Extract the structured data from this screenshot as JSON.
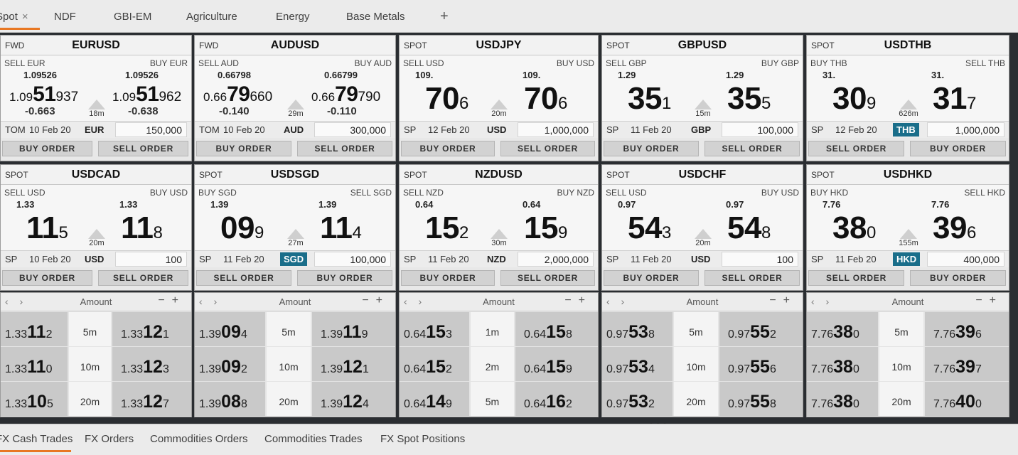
{
  "tabs": [
    {
      "label": "Spot",
      "close": "×"
    },
    {
      "label": "NDF"
    },
    {
      "label": "GBI-EM"
    },
    {
      "label": "Agriculture"
    },
    {
      "label": "Energy"
    },
    {
      "label": "Base Metals"
    },
    {
      "label": "+"
    }
  ],
  "colors": {
    "accent": "#e87722",
    "highlight_ccy": "#1a6e8a"
  },
  "tiles_row1": [
    {
      "mode": "FWD",
      "pair": "EURUSD",
      "l_lbl": "SELL EUR",
      "r_lbl": "BUY EUR",
      "l_small": "1.09526",
      "r_small": "1.09526",
      "l_pre": "1.09",
      "l_big": "51",
      "l_sup": "937",
      "r_pre": "1.09",
      "r_big": "51",
      "r_sup": "962",
      "l_chg": "-0.663",
      "r_chg": "-0.638",
      "spread": "18m",
      "tenor": "TOM",
      "date": "10 Feb 20",
      "ccy": "EUR",
      "ccy_hl": false,
      "amount": "150,000",
      "b1": "BUY ORDER",
      "b2": "SELL ORDER"
    },
    {
      "mode": "FWD",
      "pair": "AUDUSD",
      "l_lbl": "SELL AUD",
      "r_lbl": "BUY AUD",
      "l_small": "0.66798",
      "r_small": "0.66799",
      "l_pre": "0.66",
      "l_big": "79",
      "l_sup": "660",
      "r_pre": "0.66",
      "r_big": "79",
      "r_sup": "790",
      "l_chg": "-0.140",
      "r_chg": "-0.110",
      "spread": "29m",
      "tenor": "TOM",
      "date": "10 Feb 20",
      "ccy": "AUD",
      "ccy_hl": false,
      "amount": "300,000",
      "b1": "BUY ORDER",
      "b2": "SELL ORDER"
    },
    {
      "mode": "SPOT",
      "pair": "USDJPY",
      "l_lbl": "SELL USD",
      "r_lbl": "BUY USD",
      "l_small": "109.",
      "r_small": "109.",
      "l_big": "70",
      "l_sup": "6",
      "r_big": "70",
      "r_sup": "6",
      "spread": "20m",
      "tenor": "SP",
      "date": "12 Feb 20",
      "ccy": "USD",
      "ccy_hl": false,
      "amount": "1,000,000",
      "b1": "BUY ORDER",
      "b2": "SELL ORDER"
    },
    {
      "mode": "SPOT",
      "pair": "GBPUSD",
      "l_lbl": "SELL GBP",
      "r_lbl": "BUY GBP",
      "l_small": "1.29",
      "r_small": "1.29",
      "l_big": "35",
      "l_sup": "1",
      "r_big": "35",
      "r_sup": "5",
      "spread": "15m",
      "tenor": "SP",
      "date": "11 Feb 20",
      "ccy": "GBP",
      "ccy_hl": false,
      "amount": "100,000",
      "b1": "BUY ORDER",
      "b2": "SELL ORDER"
    },
    {
      "mode": "SPOT",
      "pair": "USDTHB",
      "l_lbl": "BUY THB",
      "r_lbl": "SELL THB",
      "l_small": "31.",
      "r_small": "31.",
      "l_big": "30",
      "l_sup": "9",
      "r_big": "31",
      "r_sup": "7",
      "spread": "626m",
      "tenor": "SP",
      "date": "12 Feb 20",
      "ccy": "THB",
      "ccy_hl": true,
      "amount": "1,000,000",
      "b1": "SELL ORDER",
      "b2": "BUY ORDER"
    }
  ],
  "tiles_row2": [
    {
      "mode": "SPOT",
      "pair": "USDCAD",
      "l_lbl": "SELL USD",
      "r_lbl": "BUY USD",
      "l_small": "1.33",
      "r_small": "1.33",
      "l_big": "11",
      "l_sup": "5",
      "r_big": "11",
      "r_sup": "8",
      "spread": "20m",
      "tenor": "SP",
      "date": "10 Feb 20",
      "ccy": "USD",
      "ccy_hl": false,
      "amount": "100",
      "b1": "BUY ORDER",
      "b2": "SELL ORDER"
    },
    {
      "mode": "SPOT",
      "pair": "USDSGD",
      "l_lbl": "BUY SGD",
      "r_lbl": "SELL SGD",
      "l_small": "1.39",
      "r_small": "1.39",
      "l_big": "09",
      "l_sup": "9",
      "r_big": "11",
      "r_sup": "4",
      "spread": "27m",
      "tenor": "SP",
      "date": "11 Feb 20",
      "ccy": "SGD",
      "ccy_hl": true,
      "amount": "100,000",
      "b1": "SELL ORDER",
      "b2": "BUY ORDER"
    },
    {
      "mode": "SPOT",
      "pair": "NZDUSD",
      "l_lbl": "SELL NZD",
      "r_lbl": "BUY NZD",
      "l_small": "0.64",
      "r_small": "0.64",
      "l_big": "15",
      "l_sup": "2",
      "r_big": "15",
      "r_sup": "9",
      "spread": "30m",
      "tenor": "SP",
      "date": "11 Feb 20",
      "ccy": "NZD",
      "ccy_hl": false,
      "amount": "2,000,000",
      "b1": "BUY ORDER",
      "b2": "SELL ORDER"
    },
    {
      "mode": "SPOT",
      "pair": "USDCHF",
      "l_lbl": "SELL USD",
      "r_lbl": "BUY USD",
      "l_small": "0.97",
      "r_small": "0.97",
      "l_big": "54",
      "l_sup": "3",
      "r_big": "54",
      "r_sup": "8",
      "spread": "20m",
      "tenor": "SP",
      "date": "11 Feb 20",
      "ccy": "USD",
      "ccy_hl": false,
      "amount": "100",
      "b1": "BUY ORDER",
      "b2": "SELL ORDER"
    },
    {
      "mode": "SPOT",
      "pair": "USDHKD",
      "l_lbl": "BUY HKD",
      "r_lbl": "SELL HKD",
      "l_small": "7.76",
      "r_small": "7.76",
      "l_big": "38",
      "l_sup": "0",
      "r_big": "39",
      "r_sup": "6",
      "spread": "155m",
      "tenor": "SP",
      "date": "11 Feb 20",
      "ccy": "HKD",
      "ccy_hl": true,
      "amount": "400,000",
      "b1": "SELL ORDER",
      "b2": "BUY ORDER"
    }
  ],
  "ladder_header": {
    "nav": "‹ ›",
    "label": "Amount",
    "minus": "−",
    "plus": "+"
  },
  "ladders": [
    {
      "rows": [
        {
          "l_pre": "1.33",
          "l_big": "11",
          "l_sub": "2",
          "tenor": "5m",
          "r_pre": "1.33",
          "r_big": "12",
          "r_sub": "1"
        },
        {
          "l_pre": "1.33",
          "l_big": "11",
          "l_sub": "0",
          "tenor": "10m",
          "r_pre": "1.33",
          "r_big": "12",
          "r_sub": "3"
        },
        {
          "l_pre": "1.33",
          "l_big": "10",
          "l_sub": "5",
          "tenor": "20m",
          "r_pre": "1.33",
          "r_big": "12",
          "r_sub": "7"
        }
      ]
    },
    {
      "rows": [
        {
          "l_pre": "1.39",
          "l_big": "09",
          "l_sub": "4",
          "tenor": "5m",
          "r_pre": "1.39",
          "r_big": "11",
          "r_sub": "9"
        },
        {
          "l_pre": "1.39",
          "l_big": "09",
          "l_sub": "2",
          "tenor": "10m",
          "r_pre": "1.39",
          "r_big": "12",
          "r_sub": "1"
        },
        {
          "l_pre": "1.39",
          "l_big": "08",
          "l_sub": "8",
          "tenor": "20m",
          "r_pre": "1.39",
          "r_big": "12",
          "r_sub": "4"
        }
      ]
    },
    {
      "rows": [
        {
          "l_pre": "0.64",
          "l_big": "15",
          "l_sub": "3",
          "tenor": "1m",
          "r_pre": "0.64",
          "r_big": "15",
          "r_sub": "8"
        },
        {
          "l_pre": "0.64",
          "l_big": "15",
          "l_sub": "2",
          "tenor": "2m",
          "r_pre": "0.64",
          "r_big": "15",
          "r_sub": "9"
        },
        {
          "l_pre": "0.64",
          "l_big": "14",
          "l_sub": "9",
          "tenor": "5m",
          "r_pre": "0.64",
          "r_big": "16",
          "r_sub": "2"
        }
      ]
    },
    {
      "rows": [
        {
          "l_pre": "0.97",
          "l_big": "53",
          "l_sub": "8",
          "tenor": "5m",
          "r_pre": "0.97",
          "r_big": "55",
          "r_sub": "2"
        },
        {
          "l_pre": "0.97",
          "l_big": "53",
          "l_sub": "4",
          "tenor": "10m",
          "r_pre": "0.97",
          "r_big": "55",
          "r_sub": "6"
        },
        {
          "l_pre": "0.97",
          "l_big": "53",
          "l_sub": "2",
          "tenor": "20m",
          "r_pre": "0.97",
          "r_big": "55",
          "r_sub": "8"
        }
      ]
    },
    {
      "rows": [
        {
          "l_pre": "7.76",
          "l_big": "38",
          "l_sub": "0",
          "tenor": "5m",
          "r_pre": "7.76",
          "r_big": "39",
          "r_sub": "6"
        },
        {
          "l_pre": "7.76",
          "l_big": "38",
          "l_sub": "0",
          "tenor": "10m",
          "r_pre": "7.76",
          "r_big": "39",
          "r_sub": "7"
        },
        {
          "l_pre": "7.76",
          "l_big": "38",
          "l_sub": "0",
          "tenor": "20m",
          "r_pre": "7.76",
          "r_big": "40",
          "r_sub": "0"
        }
      ]
    }
  ],
  "bottom_tabs": [
    "FX Cash Trades",
    "FX Orders",
    "Commodities Orders",
    "Commodities Trades",
    "FX Spot Positions"
  ]
}
